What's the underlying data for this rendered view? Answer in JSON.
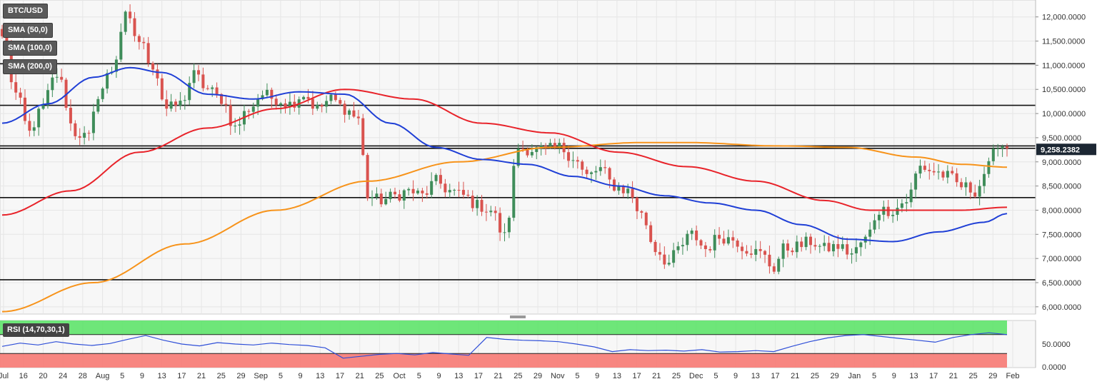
{
  "chart_data": {
    "type": "candlestick",
    "symbol": "BTC/USD",
    "indicators": [
      {
        "name": "SMA (50,0)",
        "color": "#1f3fd6"
      },
      {
        "name": "SMA (100,0)",
        "color": "#e8232a"
      },
      {
        "name": "SMA (200,0)",
        "color": "#f7931a"
      }
    ],
    "price_axis": {
      "range": [
        5850,
        12350
      ],
      "ticks": [
        {
          "value": 6000,
          "label": "6,000.0000"
        },
        {
          "value": 6500,
          "label": "6,500.0000"
        },
        {
          "value": 7000,
          "label": "7,000.0000"
        },
        {
          "value": 7500,
          "label": "7,500.0000"
        },
        {
          "value": 8000,
          "label": "8,000.0000"
        },
        {
          "value": 8500,
          "label": "8,500.0000"
        },
        {
          "value": 9000,
          "label": "9,000.0000"
        },
        {
          "value": 9500,
          "label": "9,500.0000"
        },
        {
          "value": 10000,
          "label": "10,000.0000"
        },
        {
          "value": 10500,
          "label": "10,500.0000"
        },
        {
          "value": 11000,
          "label": "11,000.0000"
        },
        {
          "value": 11500,
          "label": "11,500.0000"
        },
        {
          "value": 12000,
          "label": "12,000.0000"
        }
      ]
    },
    "last_price": {
      "value": 9258.2382,
      "label": "9,258.2382"
    },
    "horizontal_levels": [
      11030,
      10170,
      9330,
      9280,
      8260,
      6560
    ],
    "x_ticks": [
      "Jul",
      "16",
      "20",
      "24",
      "28",
      "Aug",
      "5",
      "9",
      "13",
      "17",
      "21",
      "25",
      "29",
      "Sep",
      "5",
      "9",
      "13",
      "17",
      "21",
      "25",
      "Oct",
      "5",
      "9",
      "13",
      "17",
      "21",
      "25",
      "29",
      "Nov",
      "5",
      "9",
      "13",
      "17",
      "21",
      "25",
      "Dec",
      "5",
      "9",
      "13",
      "17",
      "21",
      "25",
      "29",
      "Jan",
      "5",
      "9",
      "13",
      "17",
      "21",
      "25",
      "29",
      "Feb"
    ],
    "close_keypoints": [
      [
        0,
        11600
      ],
      [
        3,
        10400
      ],
      [
        6,
        9600
      ],
      [
        8,
        10000
      ],
      [
        12,
        10800
      ],
      [
        16,
        9600
      ],
      [
        19,
        9500
      ],
      [
        21,
        10400
      ],
      [
        24,
        10900
      ],
      [
        27,
        12000
      ],
      [
        30,
        11500
      ],
      [
        33,
        11000
      ],
      [
        36,
        10100
      ],
      [
        39,
        10200
      ],
      [
        42,
        10800
      ],
      [
        45,
        10500
      ],
      [
        48,
        10300
      ],
      [
        51,
        9700
      ],
      [
        54,
        10100
      ],
      [
        57,
        10400
      ],
      [
        60,
        10300
      ],
      [
        63,
        10200
      ],
      [
        66,
        10400
      ],
      [
        69,
        10100
      ],
      [
        72,
        10300
      ],
      [
        75,
        10100
      ],
      [
        78,
        9900
      ],
      [
        80,
        8300
      ],
      [
        83,
        8200
      ],
      [
        86,
        8300
      ],
      [
        89,
        8400
      ],
      [
        92,
        8300
      ],
      [
        95,
        8600
      ],
      [
        98,
        8400
      ],
      [
        101,
        8300
      ],
      [
        104,
        8100
      ],
      [
        107,
        8000
      ],
      [
        110,
        7450
      ],
      [
        113,
        9300
      ],
      [
        116,
        9250
      ],
      [
        119,
        9250
      ],
      [
        122,
        9300
      ],
      [
        125,
        9100
      ],
      [
        128,
        8700
      ],
      [
        131,
        8850
      ],
      [
        134,
        8500
      ],
      [
        137,
        8400
      ],
      [
        140,
        7900
      ],
      [
        143,
        7200
      ],
      [
        146,
        6900
      ],
      [
        148,
        7200
      ],
      [
        151,
        7500
      ],
      [
        154,
        7200
      ],
      [
        157,
        7450
      ],
      [
        160,
        7400
      ],
      [
        163,
        7200
      ],
      [
        166,
        7100
      ],
      [
        169,
        6800
      ],
      [
        171,
        7200
      ],
      [
        174,
        7250
      ],
      [
        177,
        7350
      ],
      [
        180,
        7200
      ],
      [
        183,
        7250
      ],
      [
        186,
        7100
      ],
      [
        189,
        7400
      ],
      [
        192,
        8000
      ],
      [
        195,
        8000
      ],
      [
        198,
        8200
      ],
      [
        201,
        8900
      ],
      [
        204,
        8800
      ],
      [
        207,
        8700
      ],
      [
        210,
        8500
      ],
      [
        213,
        8400
      ],
      [
        216,
        8900
      ],
      [
        218,
        9400
      ],
      [
        220,
        9280
      ]
    ],
    "sma50_keypoints": [
      [
        0,
        9800
      ],
      [
        10,
        10200
      ],
      [
        20,
        10750
      ],
      [
        28,
        10950
      ],
      [
        35,
        10850
      ],
      [
        45,
        10400
      ],
      [
        55,
        10300
      ],
      [
        65,
        10450
      ],
      [
        75,
        10400
      ],
      [
        85,
        9800
      ],
      [
        95,
        9300
      ],
      [
        105,
        9050
      ],
      [
        115,
        8950
      ],
      [
        125,
        8700
      ],
      [
        135,
        8500
      ],
      [
        145,
        8300
      ],
      [
        155,
        8150
      ],
      [
        165,
        8000
      ],
      [
        175,
        7700
      ],
      [
        185,
        7400
      ],
      [
        195,
        7350
      ],
      [
        205,
        7550
      ],
      [
        215,
        7750
      ],
      [
        220,
        7930
      ]
    ],
    "sma100_keypoints": [
      [
        0,
        7900
      ],
      [
        15,
        8400
      ],
      [
        30,
        9200
      ],
      [
        45,
        9700
      ],
      [
        60,
        10100
      ],
      [
        75,
        10500
      ],
      [
        90,
        10300
      ],
      [
        105,
        9800
      ],
      [
        120,
        9600
      ],
      [
        135,
        9200
      ],
      [
        150,
        8900
      ],
      [
        165,
        8600
      ],
      [
        180,
        8200
      ],
      [
        190,
        8000
      ],
      [
        200,
        8000
      ],
      [
        210,
        8000
      ],
      [
        220,
        8060
      ]
    ],
    "sma200_keypoints": [
      [
        0,
        5900
      ],
      [
        20,
        6500
      ],
      [
        40,
        7300
      ],
      [
        60,
        8000
      ],
      [
        80,
        8600
      ],
      [
        100,
        9000
      ],
      [
        120,
        9300
      ],
      [
        140,
        9400
      ],
      [
        150,
        9400
      ],
      [
        170,
        9330
      ],
      [
        185,
        9300
      ],
      [
        200,
        9100
      ],
      [
        210,
        8950
      ],
      [
        220,
        8890
      ]
    ],
    "rsi": {
      "label": "RSI (14,70,30,1)",
      "overbought": 70,
      "oversold": 30,
      "tick_label": "50.0000",
      "zero_label": "0.0000",
      "values": [
        45,
        52,
        48,
        55,
        50,
        47,
        51,
        60,
        68,
        58,
        50,
        46,
        53,
        50,
        48,
        52,
        49,
        47,
        42,
        20,
        24,
        28,
        30,
        27,
        32,
        29,
        26,
        64,
        60,
        58,
        57,
        55,
        50,
        44,
        34,
        38,
        36,
        37,
        35,
        38,
        33,
        34,
        36,
        34,
        45,
        55,
        63,
        68,
        70,
        66,
        62,
        58,
        54,
        64,
        70,
        74,
        70
      ]
    }
  }
}
